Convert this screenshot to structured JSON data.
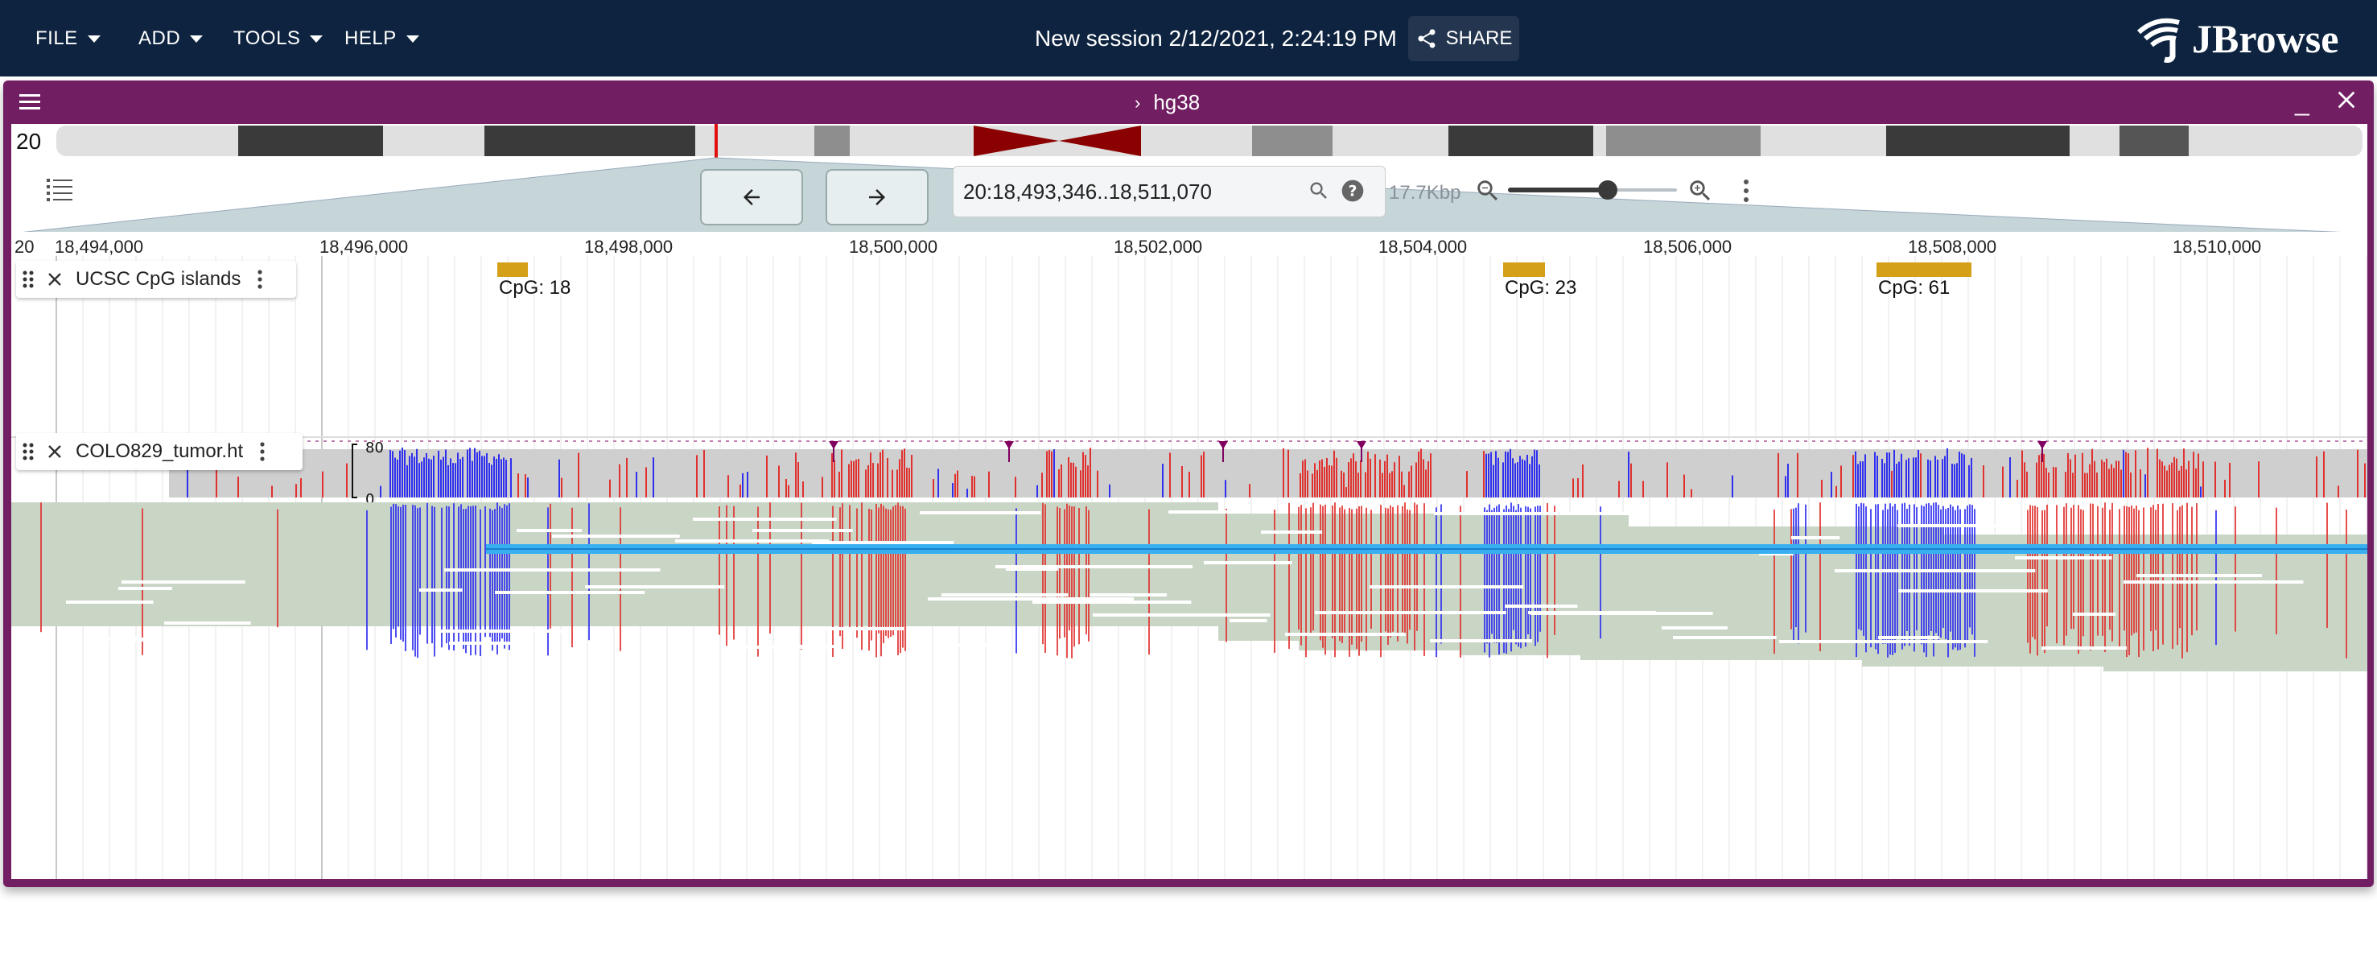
{
  "appbar": {
    "menus": [
      {
        "label": "FILE"
      },
      {
        "label": "ADD"
      },
      {
        "label": "TOOLS"
      },
      {
        "label": "HELP"
      }
    ],
    "session_title": "New session 2/12/2021, 2:24:19 PM",
    "share_label": "SHARE",
    "logo_text": "JBrowse"
  },
  "view": {
    "assembly": "hg38",
    "chromosome": "20",
    "location": "20:18,493,346..18,511,070",
    "bp_per_view": "17.7Kbp",
    "zoom_level": 0.58
  },
  "ruler": {
    "chrom": "20",
    "ticks": [
      "18,494,000",
      "18,496,000",
      "18,498,000",
      "18,500,000",
      "18,502,000",
      "18,504,000",
      "18,506,000",
      "18,508,000",
      "18,510,000"
    ]
  },
  "tracks": [
    {
      "name": "UCSC CpG islands",
      "features": [
        {
          "label": "CpG: 18"
        },
        {
          "label": "CpG: 23"
        },
        {
          "label": "CpG: 61"
        }
      ]
    },
    {
      "name": "COLO829_tumor.ht",
      "coverage_max": "80",
      "coverage_min": "0"
    }
  ],
  "colors": {
    "appbar": "#0d233f",
    "view_frame": "#721e63",
    "cpg_feature": "#d4a017",
    "mismatch_a": "#e0312f",
    "mismatch_b": "#2f2ff0",
    "selected_read": "#38b0f0"
  },
  "icons": {
    "share": "share-icon",
    "view_menu": "hamburger-icon",
    "track_selector": "list-icon",
    "back": "arrow-left-icon",
    "forward": "arrow-right-icon",
    "search": "search-icon",
    "help": "help-icon",
    "zoom_out": "zoom-out-icon",
    "zoom_in": "zoom-in-icon"
  }
}
